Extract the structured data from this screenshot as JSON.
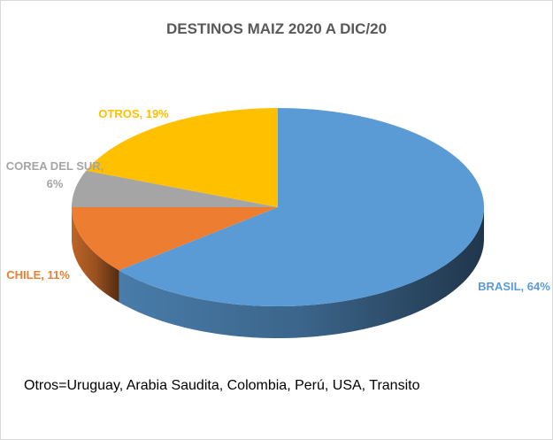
{
  "chart_data": {
    "type": "pie",
    "title": "DESTINOS MAIZ 2020 A DIC/20",
    "values": [
      64,
      11,
      6,
      19
    ],
    "value_labels": [
      "BRASIL, 64%",
      "CHILE, 11%",
      "COREA DEL SUR, 6%",
      "OTROS, 19%"
    ],
    "colors": [
      "#5b9bd5",
      "#ed7d31",
      "#a5a5a5",
      "#ffc000"
    ],
    "annotation": "Otros=Uruguay, Arabia Saudita, Colombia, Perú, USA, Transito"
  }
}
